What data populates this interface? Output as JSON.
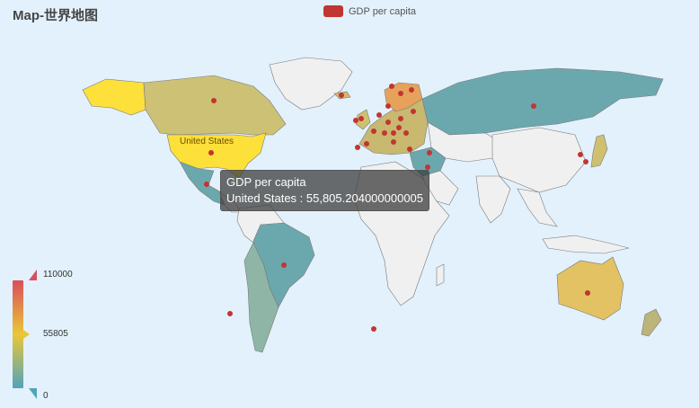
{
  "title": "Map-世界地图",
  "legend": {
    "label": "GDP per capita",
    "color": "#c23531"
  },
  "tooltip": {
    "series": "GDP per capita",
    "line": "United States : 55,805.204000000005"
  },
  "visual_map": {
    "max_label": "110000",
    "mid_label": "55805",
    "min_label": "0",
    "min": 0,
    "max": 110000,
    "colors": [
      "#50a3ba",
      "#eac736",
      "#d94e5d"
    ]
  },
  "highlight_label": "United States",
  "chart_data": {
    "type": "map",
    "series_name": "GDP per capita",
    "regions": [
      {
        "name": "United States",
        "value": 55805.204
      },
      {
        "name": "Canada",
        "value": 43000
      },
      {
        "name": "Mexico",
        "value": 9000
      },
      {
        "name": "Brazil",
        "value": 9000
      },
      {
        "name": "Russia",
        "value": 9000
      },
      {
        "name": "Australia",
        "value": 51000
      },
      {
        "name": "Japan",
        "value": 34500
      },
      {
        "name": "Turkey",
        "value": 9000
      }
    ]
  }
}
